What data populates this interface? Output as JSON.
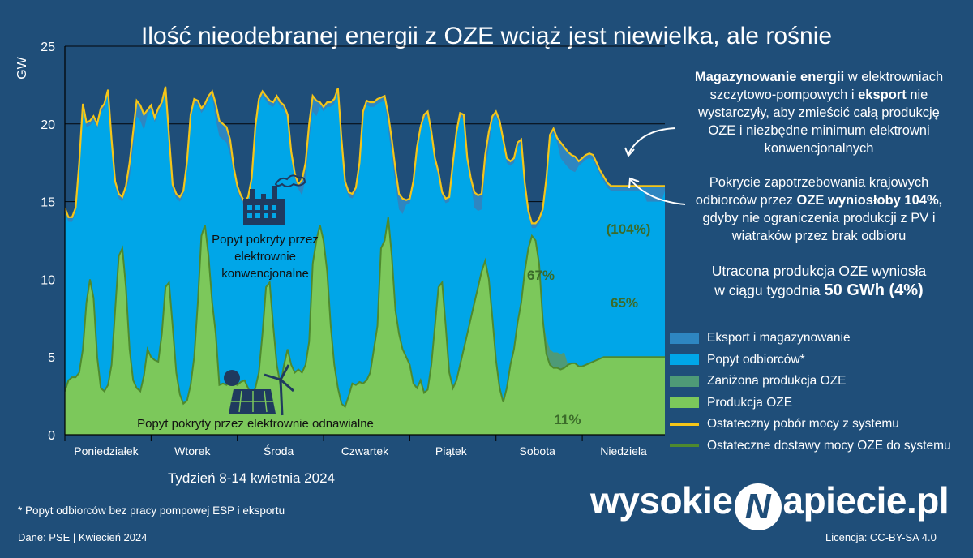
{
  "title": "Ilość nieodebranej energii z OZE wciąż jest niewielka, ale rośnie",
  "annotations": {
    "storage_line1_bold": "Magazynowanie energii",
    "storage_line1_rest": " w elektrowniach",
    "storage_line2_a": "szczytowo-pompowych i ",
    "storage_line2_bold": "eksport",
    "storage_line2_b": " nie",
    "storage_line3": "wystarczyły, aby zmieścić całą produkcję",
    "storage_line4": "OZE i niezbędne minimum elektrowni",
    "storage_line5": "konwencjonalnych",
    "coverage_line1": "Pokrycie zapotrzebowania krajowych",
    "coverage_line2_a": "odbiorców przez ",
    "coverage_line2_bold": "OZE wyniosłoby 104%,",
    "coverage_line3": "gdyby nie ograniczenia produkcji z PV i",
    "coverage_line4": "wiatraków przez brak odbioru",
    "lost_line1": "Utracona produkcja OZE wyniosła",
    "lost_line2_a": "w ciągu tygodnia ",
    "lost_line2_bold": "50 GWh (4%)"
  },
  "legend": [
    {
      "label": "Eksport i magazynowanie",
      "color": "#2e86c1",
      "kind": "area"
    },
    {
      "label": "Popyt odbiorców*",
      "color": "#00a6e8",
      "kind": "area"
    },
    {
      "label": "Zaniżona produkcja OZE",
      "color": "#4e9a77",
      "kind": "area"
    },
    {
      "label": "Produkcja OZE",
      "color": "#7cc85b",
      "kind": "area"
    },
    {
      "label": "Ostateczny pobór mocy z systemu",
      "color": "#f5c518",
      "kind": "line"
    },
    {
      "label": "Ostateczne dostawy mocy OZE do systemu",
      "color": "#4f8a2e",
      "kind": "line"
    }
  ],
  "footnote": "* Popyt odbiorców bez pracy pompowej ESP i eksportu",
  "source": "Dane: PSE  |  Kwiecień 2024",
  "license": "Licencja: CC-BY-SA 4.0",
  "logo": {
    "left": "wysokie",
    "mark": "N",
    "right": "apiecie.pl"
  },
  "chart_data": {
    "type": "area",
    "title": "Ilość nieodebranej energii z OZE wciąż jest niewielka, ale rośnie",
    "xlabel": "Tydzień 8-14 kwietnia 2024",
    "ylabel": "GW",
    "ylim": [
      0,
      25
    ],
    "yticks": [
      0,
      5,
      10,
      15,
      20,
      25
    ],
    "categories": [
      "Poniedziałek",
      "Wtorek",
      "Środa",
      "Czwartek",
      "Piątek",
      "Sobota",
      "Niedziela"
    ],
    "hours_per_day": 24,
    "series": [
      {
        "name": "Ostateczny pobór mocy z systemu",
        "color": "#f5c518",
        "values": {
          "Poniedziałek": [
            14.6,
            14.0,
            14.0,
            14.6,
            17.5,
            21.3,
            20.1,
            20.2,
            20.5,
            20.0,
            21.0,
            21.3,
            22.2,
            19.0,
            16.3,
            15.5,
            15.3,
            16.0,
            17.5,
            19.5,
            21.5,
            21.2,
            20.6,
            20.9
          ],
          "Wtorek": [
            21.2,
            20.4,
            21.0,
            21.4,
            22.4,
            19.2,
            16.1,
            15.5,
            15.3,
            15.7,
            17.6,
            20.6,
            21.6,
            21.5,
            21.0,
            21.3,
            21.8,
            22.1,
            21.3,
            20.2,
            20.0,
            19.8,
            19.0,
            17.2
          ],
          "Środa": [
            16.0,
            15.4,
            15.0,
            15.3,
            16.5,
            19.8,
            21.6,
            22.1,
            21.8,
            21.5,
            21.4,
            21.8,
            21.4,
            21.2,
            20.6,
            18.2,
            16.8,
            16.1,
            16.4,
            17.5,
            20.0,
            21.8,
            21.5,
            21.4
          ],
          "Czwartek": [
            21.1,
            21.4,
            21.4,
            21.6,
            22.3,
            19.0,
            16.3,
            15.6,
            15.5,
            15.9,
            17.5,
            20.8,
            21.5,
            21.4,
            21.4,
            21.6,
            21.7,
            21.8,
            20.6,
            19.0,
            17.1,
            15.5,
            15.2,
            15.1
          ],
          "Piątek": [
            15.2,
            16.3,
            18.5,
            19.8,
            20.6,
            20.8,
            19.5,
            17.8,
            16.9,
            15.6,
            15.2,
            15.3,
            17.5,
            19.5,
            20.7,
            20.6,
            17.8,
            16.5,
            15.6,
            15.4,
            15.5,
            18.0,
            19.5,
            20.5
          ],
          "Sobota": [
            20.8,
            20.2,
            19.0,
            17.8,
            17.6,
            17.8,
            18.8,
            19.0,
            16.2,
            14.4,
            13.6,
            13.6,
            13.9,
            14.5,
            16.5,
            19.3,
            19.7,
            19.1,
            18.8,
            18.5,
            18.2,
            18.0,
            17.9,
            17.6
          ],
          "Niedziela": [
            17.8,
            18.0,
            18.1,
            18.0,
            17.5,
            17.0,
            16.6,
            16.2,
            16.0,
            16.0,
            16.0,
            16.0,
            16.0,
            16.0,
            16.0,
            16.0,
            16.0,
            16.0,
            16.0,
            16.0,
            16.0,
            16.0,
            16.0,
            16.0
          ]
        }
      },
      {
        "name": "Ostateczne dostawy mocy OZE do systemu",
        "color": "#4f8a2e",
        "values": {
          "Poniedziałek": [
            2.8,
            3.5,
            3.7,
            3.7,
            4.0,
            5.5,
            8.5,
            10.0,
            8.8,
            5.0,
            3.0,
            2.8,
            3.2,
            4.5,
            8.0,
            11.5,
            12.0,
            9.5,
            5.5,
            3.5,
            3.0,
            2.8,
            3.8,
            5.5
          ],
          "Wtorek": [
            5.0,
            4.8,
            4.7,
            6.5,
            9.5,
            9.8,
            7.0,
            4.0,
            2.6,
            2.0,
            2.2,
            3.2,
            5.0,
            8.5,
            12.8,
            13.5,
            11.5,
            8.5,
            6.5,
            3.2,
            3.3,
            3.2,
            3.5,
            3.3
          ],
          "Środa": [
            3.2,
            3.4,
            3.5,
            3.0,
            2.5,
            3.0,
            4.0,
            6.5,
            9.5,
            9.8,
            7.0,
            4.5,
            3.2,
            4.5,
            5.5,
            4.5,
            4.0,
            4.2,
            4.0,
            4.5,
            6.0,
            11.0,
            12.5,
            13.5
          ],
          "Czwartek": [
            12.5,
            10.5,
            7.0,
            4.5,
            3.0,
            2.0,
            1.8,
            2.5,
            3.3,
            3.2,
            3.4,
            3.3,
            3.5,
            4.0,
            5.5,
            7.0,
            12.0,
            12.5,
            14.0,
            11.5,
            8.0,
            6.5,
            5.5,
            5.0
          ],
          "Piątek": [
            4.5,
            3.3,
            3.0,
            3.5,
            2.7,
            2.9,
            4.5,
            7.0,
            9.5,
            9.8,
            7.0,
            4.0,
            3.0,
            3.5,
            4.5,
            5.5,
            6.5,
            7.5,
            8.5,
            9.5,
            10.5,
            11.2,
            10.0,
            7.5
          ],
          "Sobota": [
            4.8,
            3.0,
            2.1,
            3.0,
            4.5,
            5.5,
            7.2,
            8.5,
            10.5,
            12.0,
            12.8,
            12.5,
            11.0,
            7.5,
            5.2,
            4.5,
            4.3,
            4.3,
            4.2,
            4.3,
            4.5,
            4.6,
            4.6,
            4.4
          ],
          "Niedziela": [
            4.4,
            4.5,
            4.6,
            4.7,
            4.8,
            4.9,
            5.0,
            5.0,
            5.0,
            5.0,
            5.0,
            5.0,
            5.0,
            5.0,
            5.0,
            5.0,
            5.0,
            5.0,
            5.0,
            5.0,
            5.0,
            5.0,
            5.0,
            5.0
          ]
        }
      }
    ],
    "data_labels": [
      {
        "text": "67%",
        "day": "Sobota"
      },
      {
        "text": "11%",
        "day": "Sobota"
      },
      {
        "text": "(104%)",
        "day": "Niedziela"
      },
      {
        "text": "65%",
        "day": "Niedziela"
      }
    ],
    "region_labels": [
      "Popyt pokryty przez elektrownie konwencjonalne",
      "Popyt pokryty przez elektrownie odnawialne"
    ],
    "grid": true,
    "legend_position": "right"
  }
}
